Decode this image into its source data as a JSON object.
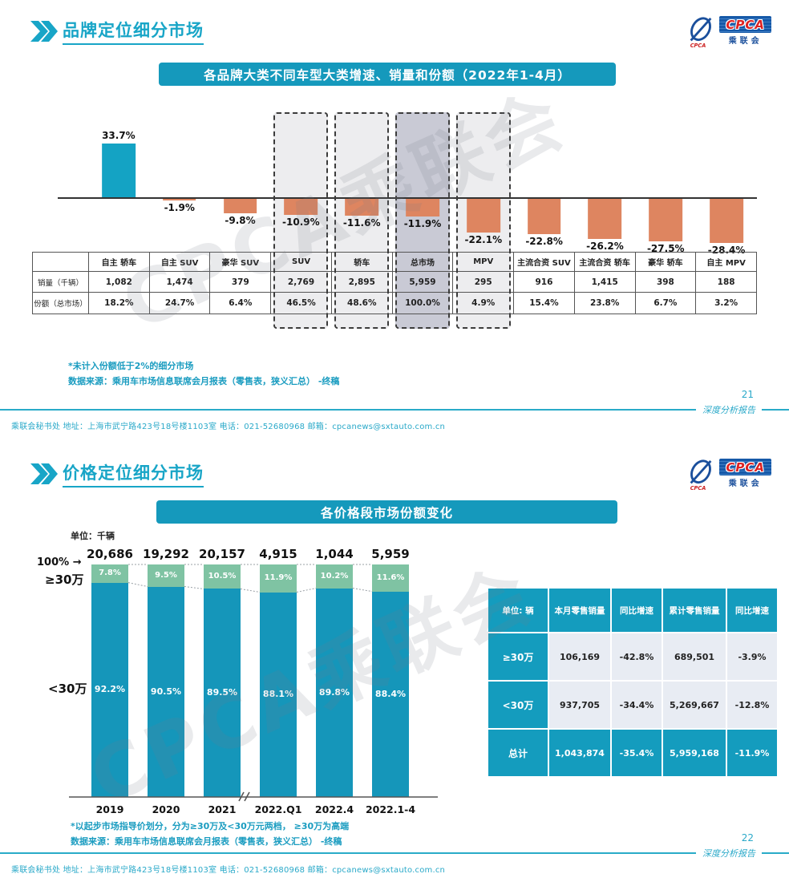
{
  "watermark": "CPCA乘联会",
  "logo": {
    "cpca": "CPCA",
    "sub": "乘联会"
  },
  "page": {
    "footer_left": "乘联会秘书处  地址：上海市武宁路423号18号楼1103室 电话：021-52680968  邮箱：cpcanews@sxtauto.com.cn",
    "footer_right": "深度分析报告"
  },
  "slide1": {
    "page_number": "21",
    "title": "品牌定位细分市场",
    "banner": "各品牌大类不同车型大类增速、销量和份额（2022年1-4月）",
    "footnote1": "*未计入份额低于2%的细分市场",
    "footnote2": "数据来源：乘用车市场信息联席会月报表（零售表，狭义汇总） -终稿",
    "table": {
      "row_headers": [
        "销量（千辆）",
        "份额（总市场）"
      ],
      "columns": [
        "自主 轿车",
        "自主 SUV",
        "豪华 SUV",
        "SUV",
        "轿车",
        "总市场",
        "MPV",
        "主流合资 SUV",
        "主流合资 轿车",
        "豪华 轿车",
        "自主 MPV"
      ],
      "rows": [
        [
          "1,082",
          "1,474",
          "379",
          "2,769",
          "2,895",
          "5,959",
          "295",
          "916",
          "1,415",
          "398",
          "188"
        ],
        [
          "18.2%",
          "24.7%",
          "6.4%",
          "46.5%",
          "48.6%",
          "100.0%",
          "4.9%",
          "15.4%",
          "23.8%",
          "6.7%",
          "3.2%"
        ]
      ]
    }
  },
  "slide2": {
    "page_number": "22",
    "title": "价格定位细分市场",
    "banner": "各价格段市场份额变化",
    "unit_label": "单位：千辆",
    "axis_label_100": "100% →",
    "label_ge30": "≥30万",
    "label_lt30": "<30万",
    "footnote1": "*以起步市场指导价划分，分为≥30万及<30万元两档， ≥30万为高端",
    "footnote2": "数据来源：乘用车市场信息联席会月报表（零售表，狭义汇总） -终稿",
    "table": {
      "headers": [
        "单位: 辆",
        "本月零售销量",
        "同比增速",
        "累计零售销量",
        "同比增速"
      ],
      "rows": [
        {
          "label": "≥30万",
          "cells": [
            "106,169",
            "-42.8%",
            "689,501",
            "-3.9%"
          ],
          "highlight": false
        },
        {
          "label": "<30万",
          "cells": [
            "937,705",
            "-34.4%",
            "5,269,667",
            "-12.8%"
          ],
          "highlight": false
        },
        {
          "label": "总计",
          "cells": [
            "1,043,874",
            "-35.4%",
            "5,959,168",
            "-11.9%"
          ],
          "highlight": true
        }
      ]
    }
  },
  "chart_data": [
    {
      "id": "brand-segment-growth",
      "type": "bar",
      "title": "各品牌大类不同车型大类增速、销量和份额（2022年1-4月）",
      "unit": "%",
      "categories": [
        "自主 轿车",
        "自主 SUV",
        "豪华 SUV",
        "SUV",
        "轿车",
        "总市场",
        "MPV",
        "主流合资 SUV",
        "主流合资 轿车",
        "豪华 轿车",
        "自主 MPV"
      ],
      "values": [
        33.7,
        -1.9,
        -9.8,
        -10.9,
        -11.6,
        -11.9,
        -22.1,
        -22.8,
        -26.2,
        -27.5,
        -28.4
      ],
      "value_labels": [
        "33.7%",
        "-1.9%",
        "-9.8%",
        "-10.9%",
        "-11.6%",
        "-11.9%",
        "-22.1%",
        "-22.8%",
        "-26.2%",
        "-27.5%",
        "-28.4%"
      ],
      "highlight_indexes": [
        3,
        4,
        5,
        6
      ],
      "emphasis_index": 5,
      "positive_color": "#14a3c4",
      "negative_color": "#de8560",
      "highlight_fill": "#ededef",
      "emphasis_fill": "#c9cad5",
      "grid": false,
      "legend": "none"
    },
    {
      "id": "price-band-share",
      "type": "stacked-bar",
      "title": "各价格段市场份额变化",
      "unit": "千辆",
      "categories": [
        "2019",
        "2020",
        "2021",
        "2022.Q1",
        "2022.4",
        "2022.1-4"
      ],
      "totals": [
        "20,686",
        "19,292",
        "20,157",
        "4,915",
        "1,044",
        "5,959"
      ],
      "series": [
        {
          "name": "≥30万",
          "values": [
            7.8,
            9.5,
            10.5,
            11.9,
            10.2,
            11.6
          ],
          "labels": [
            "7.8%",
            "9.5%",
            "10.5%",
            "11.9%",
            "10.2%",
            "11.6%"
          ],
          "color": "#7fc3a3"
        },
        {
          "name": "<30万",
          "values": [
            92.2,
            90.5,
            89.5,
            88.1,
            89.8,
            88.4
          ],
          "labels": [
            "92.2%",
            "90.5%",
            "89.5%",
            "88.1%",
            "89.8%",
            "88.4%"
          ],
          "color": "#1596ba"
        }
      ],
      "ylim": [
        0,
        100
      ],
      "axis_break_between": [
        "2021",
        "2022.Q1"
      ],
      "grid": false,
      "legend": "left-axis-labels"
    }
  ]
}
